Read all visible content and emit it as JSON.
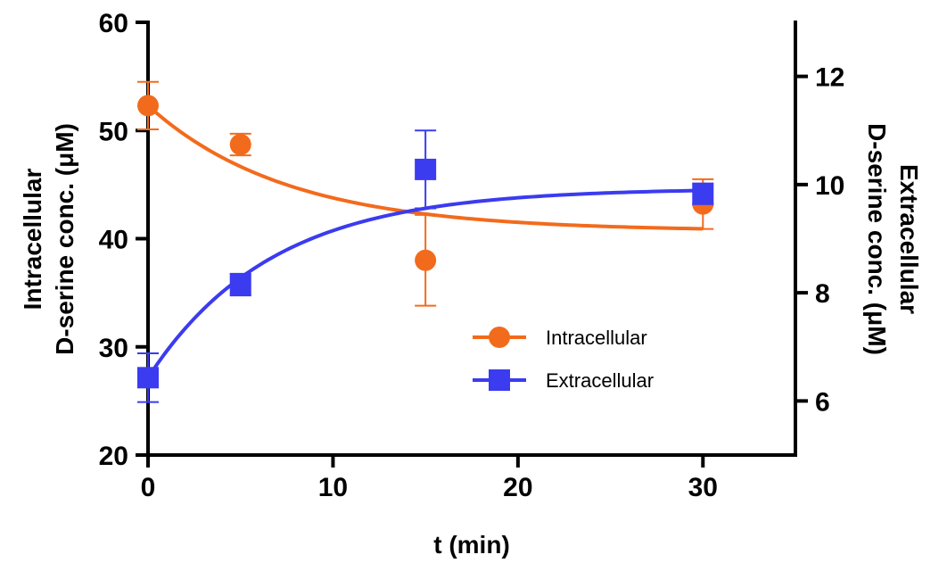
{
  "chart_data": {
    "type": "scatter",
    "xlabel": "t (min)",
    "ylabel_left": [
      "Intracellular",
      "D-serine conc. (μM)"
    ],
    "ylabel_right": [
      "Extracellular",
      "D-serine conc. (μM)"
    ],
    "xlim": [
      0,
      35
    ],
    "ylim_left": [
      20,
      60
    ],
    "ylim_right": [
      5,
      13
    ],
    "x_ticks": [
      0,
      10,
      20,
      30
    ],
    "y_ticks_left": [
      20,
      30,
      40,
      50,
      60
    ],
    "y_ticks_right": [
      6,
      8,
      10,
      12
    ],
    "x_tick_labels": [
      "0",
      "10",
      "20",
      "30"
    ],
    "y_tick_labels_left": [
      "20",
      "30",
      "40",
      "50",
      "60"
    ],
    "y_tick_labels_right": [
      "6",
      "8",
      "10",
      "12"
    ],
    "legend_position": "center-right",
    "grid": false,
    "series": [
      {
        "name": "Intracellular",
        "axis": "left",
        "marker": "circle",
        "color": "#F26B1D",
        "x": [
          0,
          5,
          15,
          30
        ],
        "y": [
          52.3,
          48.7,
          38.0,
          43.2
        ],
        "err": [
          2.2,
          1.0,
          4.2,
          2.3
        ],
        "fit": {
          "model": "one-phase-decay",
          "y0": 52.3,
          "plateau": 40.7,
          "k": 0.133
        }
      },
      {
        "name": "Extracellular",
        "axis": "right",
        "marker": "square",
        "color": "#3B3BF0",
        "x": [
          0,
          5,
          15,
          30
        ],
        "y": [
          6.43,
          8.15,
          10.28,
          9.82
        ],
        "err": [
          0.45,
          0.2,
          0.72,
          0.2
        ],
        "fit": {
          "model": "one-phase-association",
          "y0": 6.43,
          "plateau": 9.93,
          "k": 0.15
        }
      }
    ]
  }
}
